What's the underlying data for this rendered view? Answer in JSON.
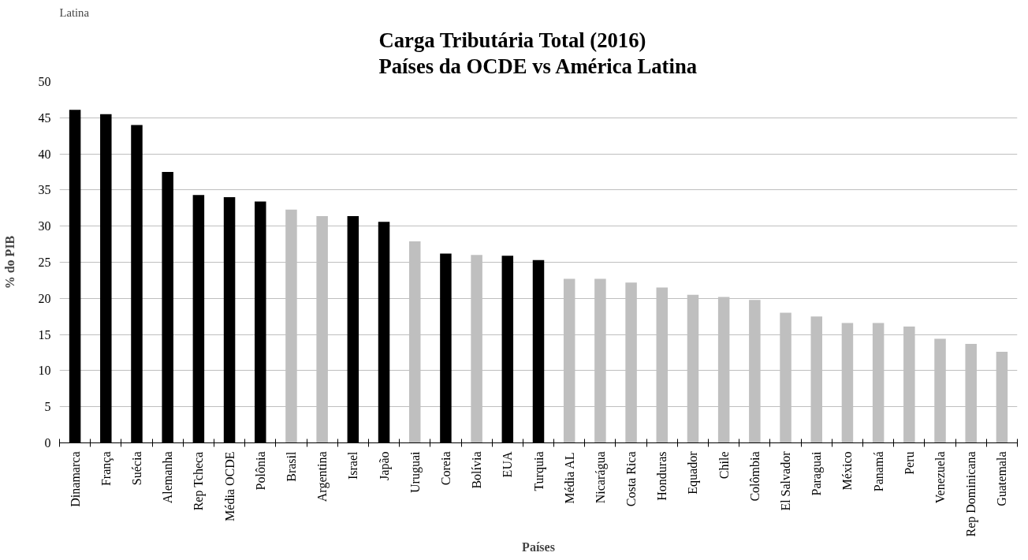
{
  "chart_data": {
    "type": "bar",
    "title": "Carga Tributária Total (2016)\nPaíses da OCDE vs América Latina",
    "xlabel": "Países",
    "ylabel": "% do PIB",
    "annotations": [
      "Latina"
    ],
    "categories": [
      "Dinamarca",
      "França",
      "Suécia",
      "Alemanha",
      "Rep Tcheca",
      "Média OCDE",
      "Polônia",
      "Brasil",
      "Argentina",
      "Israel",
      "Japão",
      "Uruguai",
      "Coreia",
      "Bolívia",
      "EUA",
      "Turquia",
      "Média AL",
      "Nicarágua",
      "Costa Rica",
      "Honduras",
      "Equador",
      "Chile",
      "Colômbia",
      "El Salvador",
      "Paraguai",
      "México",
      "Panamá",
      "Peru",
      "Venezuela",
      "Rep Dominicana",
      "Guatemala"
    ],
    "values": [
      46.1,
      45.5,
      44.0,
      37.5,
      34.3,
      34.0,
      33.4,
      32.3,
      31.4,
      31.4,
      30.6,
      27.9,
      26.2,
      26.0,
      25.9,
      25.3,
      22.7,
      22.7,
      22.2,
      21.5,
      20.5,
      20.2,
      19.8,
      18.0,
      17.5,
      16.6,
      16.6,
      16.1,
      14.4,
      13.7,
      12.6
    ],
    "colors": [
      "#000000",
      "#000000",
      "#000000",
      "#000000",
      "#000000",
      "#000000",
      "#000000",
      "#bfbfbf",
      "#bfbfbf",
      "#000000",
      "#000000",
      "#bfbfbf",
      "#000000",
      "#bfbfbf",
      "#000000",
      "#000000",
      "#bfbfbf",
      "#bfbfbf",
      "#bfbfbf",
      "#bfbfbf",
      "#bfbfbf",
      "#bfbfbf",
      "#bfbfbf",
      "#bfbfbf",
      "#bfbfbf",
      "#bfbfbf",
      "#bfbfbf",
      "#bfbfbf",
      "#bfbfbf",
      "#bfbfbf",
      "#bfbfbf"
    ],
    "ylim": [
      0,
      50
    ],
    "yticks": [
      0,
      5,
      10,
      15,
      20,
      25,
      30,
      35,
      40,
      45,
      50
    ],
    "grid": "y"
  }
}
